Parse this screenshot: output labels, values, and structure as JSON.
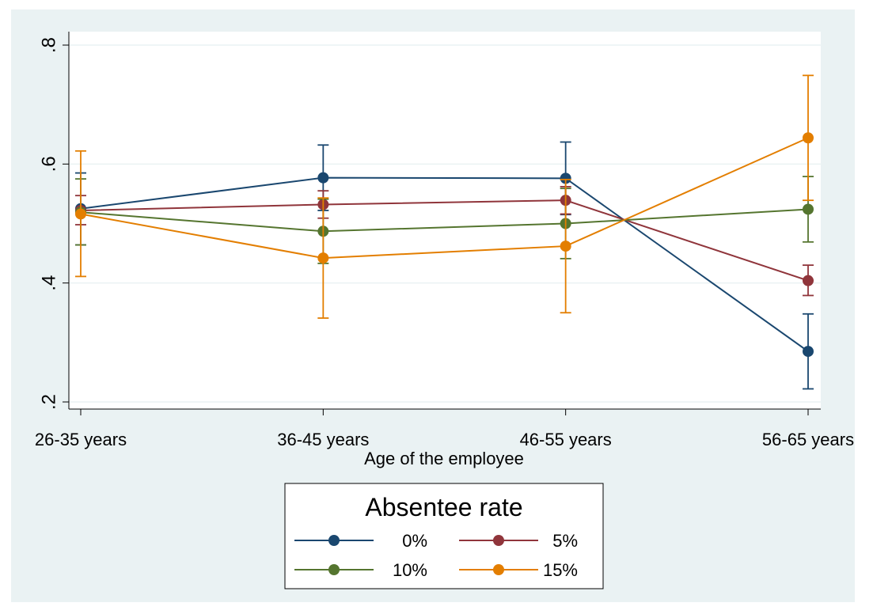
{
  "chart_data": {
    "type": "line",
    "title": "",
    "xlabel": "Age of the employee",
    "ylabel": "",
    "categories": [
      "26-35 years",
      "36-45 years",
      "46-55 years",
      "56-65 years"
    ],
    "y_ticks": [
      ".2",
      ".4",
      ".6",
      ".8"
    ],
    "y_tick_values": [
      0.2,
      0.4,
      0.6,
      0.8
    ],
    "ylim": [
      0.2,
      0.8
    ],
    "grid": "horizontal",
    "legend": {
      "title": "Absentee rate",
      "placement": "bottom-center",
      "columns": 2
    },
    "series": [
      {
        "name": "0%",
        "color": "#1a476f",
        "values": [
          0.525,
          0.577,
          0.576,
          0.285
        ],
        "ci_low": [
          0.464,
          0.522,
          0.515,
          0.222
        ],
        "ci_high": [
          0.585,
          0.632,
          0.637,
          0.348
        ]
      },
      {
        "name": "5%",
        "color": "#90353b",
        "values": [
          0.522,
          0.532,
          0.539,
          0.404
        ],
        "ci_low": [
          0.498,
          0.509,
          0.516,
          0.379
        ],
        "ci_high": [
          0.547,
          0.555,
          0.562,
          0.43
        ]
      },
      {
        "name": "10%",
        "color": "#55752f",
        "values": [
          0.519,
          0.487,
          0.5,
          0.524
        ],
        "ci_low": [
          0.464,
          0.433,
          0.441,
          0.469
        ],
        "ci_high": [
          0.575,
          0.541,
          0.559,
          0.579
        ]
      },
      {
        "name": "15%",
        "color": "#e37e00",
        "values": [
          0.516,
          0.442,
          0.462,
          0.644
        ],
        "ci_low": [
          0.411,
          0.341,
          0.35,
          0.539
        ],
        "ci_high": [
          0.622,
          0.543,
          0.574,
          0.749
        ]
      }
    ]
  }
}
